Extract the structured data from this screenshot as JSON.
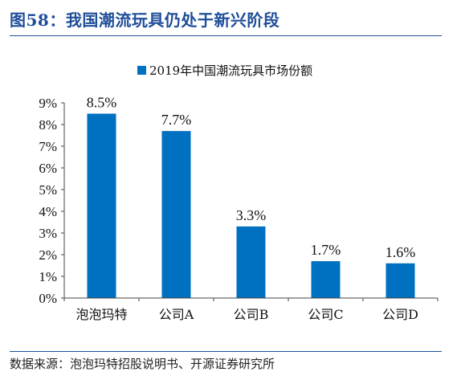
{
  "header": {
    "title": "图58：我国潮流玩具仍处于新兴阶段"
  },
  "footer": {
    "source": "数据来源：泡泡玛特招股说明书、开源证券研究所"
  },
  "colors": {
    "bar": "#0070c0",
    "title": "#1f4e9a"
  },
  "chart_data": {
    "type": "bar",
    "title": "",
    "xlabel": "",
    "ylabel": "",
    "categories": [
      "泡泡玛特",
      "公司A",
      "公司B",
      "公司C",
      "公司D"
    ],
    "series": [
      {
        "name": "2019年中国潮流玩具市场份额",
        "values": [
          8.5,
          7.7,
          3.3,
          1.7,
          1.6
        ],
        "labels": [
          "8.5%",
          "7.7%",
          "3.3%",
          "1.7%",
          "1.6%"
        ]
      }
    ],
    "ylim": [
      0,
      9
    ],
    "yticks": [
      0,
      1,
      2,
      3,
      4,
      5,
      6,
      7,
      8,
      9
    ],
    "ytick_labels": [
      "0%",
      "1%",
      "2%",
      "3%",
      "4%",
      "5%",
      "6%",
      "7%",
      "8%",
      "9%"
    ],
    "legend": "top-center",
    "grid": false
  }
}
